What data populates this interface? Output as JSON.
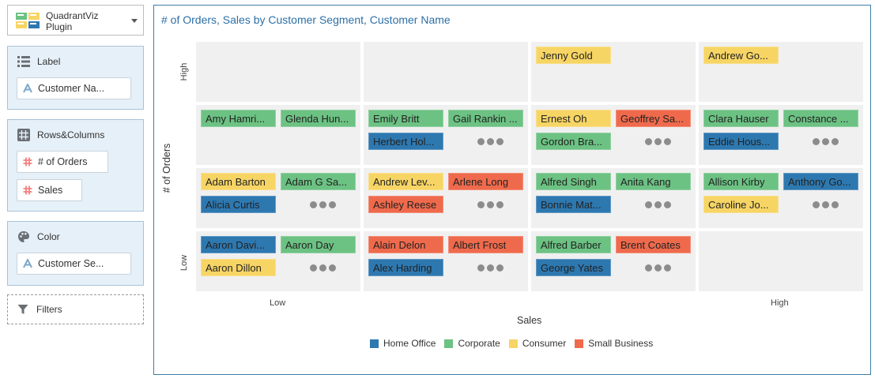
{
  "plugin": {
    "name_line1": "QuadrantViz",
    "name_line2": "Plugin",
    "icon": "plugin-thumbnail"
  },
  "sections": {
    "label": {
      "title": "Label",
      "icon": "list-icon",
      "pills": [
        "Customer Na..."
      ]
    },
    "rows_columns": {
      "title": "Rows&Columns",
      "icon": "grid-icon",
      "pills": [
        "# of Orders",
        "Sales"
      ]
    },
    "color": {
      "title": "Color",
      "icon": "palette-icon",
      "pills": [
        "Customer Se..."
      ]
    },
    "filters": {
      "title": "Filters",
      "icon": "funnel-icon"
    }
  },
  "colors": {
    "Home Office": "#2e78b0",
    "Corporate": "#6cc283",
    "Consumer": "#f7d565",
    "Small Business": "#ef6a4c",
    "accent": "#2c6fa6",
    "cell_bg": "#f0f0f0"
  },
  "chart_data": {
    "type": "table",
    "title": "# of Orders, Sales by Customer Segment, Customer Name",
    "xlabel": "Sales",
    "ylabel": "# of Orders",
    "x_tick_labels": [
      "Low",
      "High"
    ],
    "y_tick_labels": [
      "High",
      "Low"
    ],
    "legend": [
      "Home Office",
      "Corporate",
      "Consumer",
      "Small Business"
    ],
    "legend_position": "bottom",
    "columns": 4,
    "rows": 4,
    "cells": [
      {
        "row": 0,
        "col": 0,
        "cards": [],
        "more": false
      },
      {
        "row": 0,
        "col": 1,
        "cards": [],
        "more": false
      },
      {
        "row": 0,
        "col": 2,
        "cards": [
          {
            "name": "Jenny Gold",
            "segment": "Consumer"
          }
        ],
        "more": false
      },
      {
        "row": 0,
        "col": 3,
        "cards": [
          {
            "name": "Andrew Go...",
            "segment": "Consumer"
          }
        ],
        "more": false
      },
      {
        "row": 1,
        "col": 0,
        "cards": [
          {
            "name": "Amy Hamri...",
            "segment": "Corporate"
          },
          {
            "name": "Glenda Hun...",
            "segment": "Corporate"
          }
        ],
        "more": false
      },
      {
        "row": 1,
        "col": 1,
        "cards": [
          {
            "name": "Emily Britt",
            "segment": "Corporate"
          },
          {
            "name": "Gail Rankin ...",
            "segment": "Corporate"
          },
          {
            "name": "Herbert Hol...",
            "segment": "Home Office"
          }
        ],
        "more": true
      },
      {
        "row": 1,
        "col": 2,
        "cards": [
          {
            "name": "Ernest Oh",
            "segment": "Consumer"
          },
          {
            "name": "Geoffrey Sa...",
            "segment": "Small Business"
          },
          {
            "name": "Gordon Bra...",
            "segment": "Corporate"
          }
        ],
        "more": true
      },
      {
        "row": 1,
        "col": 3,
        "cards": [
          {
            "name": "Clara Hauser",
            "segment": "Corporate"
          },
          {
            "name": "Constance ...",
            "segment": "Corporate"
          },
          {
            "name": "Eddie Hous...",
            "segment": "Home Office"
          }
        ],
        "more": true
      },
      {
        "row": 2,
        "col": 0,
        "cards": [
          {
            "name": "Adam Barton",
            "segment": "Consumer"
          },
          {
            "name": "Adam G Sa...",
            "segment": "Corporate"
          },
          {
            "name": "Alicia Curtis",
            "segment": "Home Office"
          }
        ],
        "more": true
      },
      {
        "row": 2,
        "col": 1,
        "cards": [
          {
            "name": "Andrew Lev...",
            "segment": "Consumer"
          },
          {
            "name": "Arlene Long",
            "segment": "Small Business"
          },
          {
            "name": "Ashley Reese",
            "segment": "Small Business"
          }
        ],
        "more": true
      },
      {
        "row": 2,
        "col": 2,
        "cards": [
          {
            "name": "Alfred Singh",
            "segment": "Corporate"
          },
          {
            "name": "Anita Kang",
            "segment": "Corporate"
          },
          {
            "name": "Bonnie Mat...",
            "segment": "Home Office"
          }
        ],
        "more": true
      },
      {
        "row": 2,
        "col": 3,
        "cards": [
          {
            "name": "Allison Kirby",
            "segment": "Corporate"
          },
          {
            "name": "Anthony Go...",
            "segment": "Home Office"
          },
          {
            "name": "Caroline Jo...",
            "segment": "Consumer"
          }
        ],
        "more": true
      },
      {
        "row": 3,
        "col": 0,
        "cards": [
          {
            "name": "Aaron Davi...",
            "segment": "Home Office"
          },
          {
            "name": "Aaron Day",
            "segment": "Corporate"
          },
          {
            "name": "Aaron Dillon",
            "segment": "Consumer"
          }
        ],
        "more": true
      },
      {
        "row": 3,
        "col": 1,
        "cards": [
          {
            "name": "Alain Delon",
            "segment": "Small Business"
          },
          {
            "name": "Albert Frost",
            "segment": "Small Business"
          },
          {
            "name": "Alex Harding",
            "segment": "Home Office"
          }
        ],
        "more": true
      },
      {
        "row": 3,
        "col": 2,
        "cards": [
          {
            "name": "Alfred Barber",
            "segment": "Corporate"
          },
          {
            "name": "Brent Coates",
            "segment": "Small Business"
          },
          {
            "name": "George Yates",
            "segment": "Home Office"
          }
        ],
        "more": true
      },
      {
        "row": 3,
        "col": 3,
        "cards": [],
        "more": false
      }
    ]
  }
}
